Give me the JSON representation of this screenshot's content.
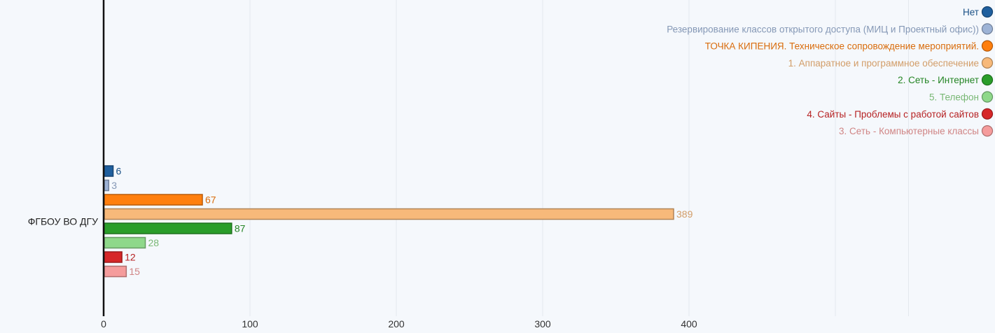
{
  "chart_data": {
    "type": "bar",
    "orientation": "horizontal",
    "categories": [
      "ФГБОУ ВО ДГУ"
    ],
    "series": [
      {
        "name": "Нет",
        "values": [
          6
        ],
        "color": "#1f5f9e"
      },
      {
        "name": "Резервирование классов открытого доступа (МИЦ и Проектный офис))",
        "values": [
          3
        ],
        "color": "#9db3d6"
      },
      {
        "name": "ТОЧКА КИПЕНИЯ. Техническое сопровождение мероприятий.",
        "values": [
          67
        ],
        "color": "#ff7f0e"
      },
      {
        "name": "1. Аппаратное и программное обеспечение",
        "values": [
          389
        ],
        "color": "#f7b97a"
      },
      {
        "name": "2. Сеть - Интернет",
        "values": [
          87
        ],
        "color": "#2a9d2a"
      },
      {
        "name": "5. Телефон",
        "values": [
          28
        ],
        "color": "#8ed88a"
      },
      {
        "name": "4. Сайты - Проблемы с работой сайтов",
        "values": [
          12
        ],
        "color": "#d62728"
      },
      {
        "name": "3. Сеть - Компьютерные классы",
        "values": [
          15
        ],
        "color": "#f59c9c"
      }
    ],
    "xlim": [
      0,
      550
    ],
    "xticks": [
      0,
      100,
      200,
      300,
      400
    ],
    "grid": true,
    "legend_position": "top-right",
    "show_value_labels": true
  }
}
